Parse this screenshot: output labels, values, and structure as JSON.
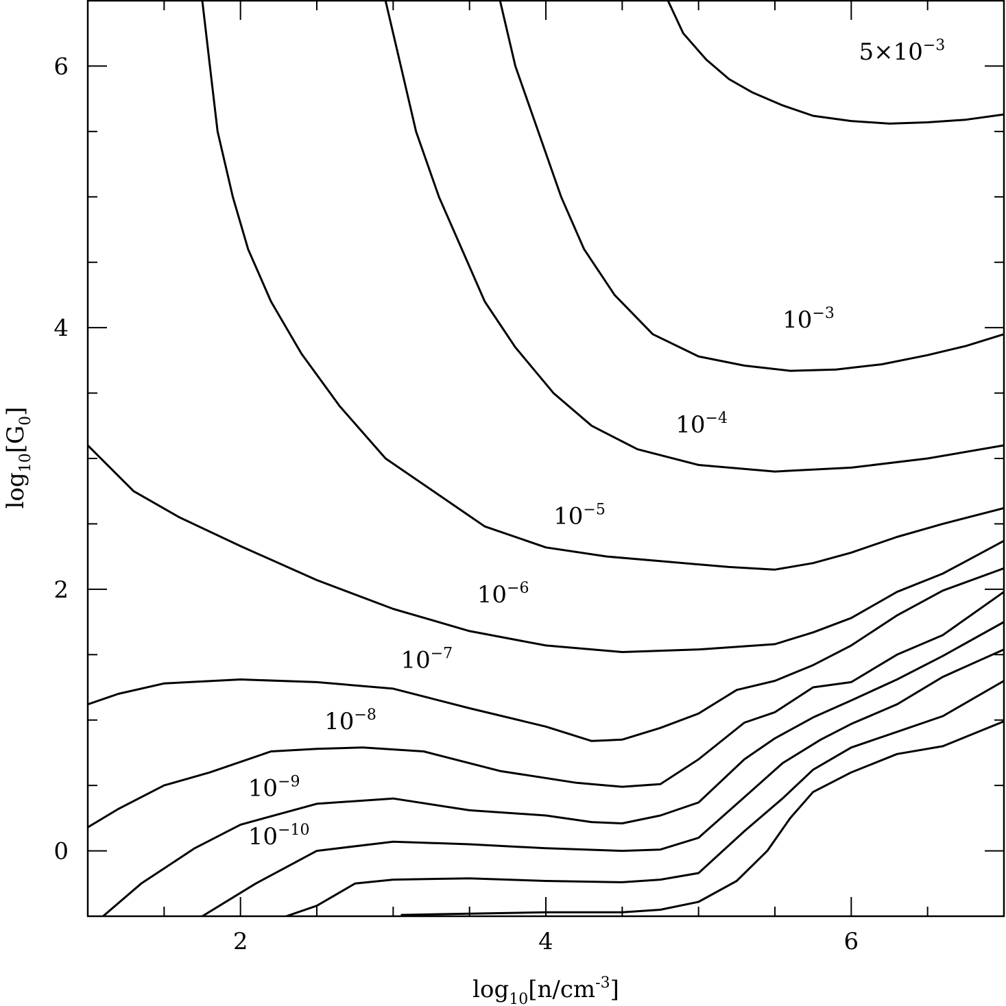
{
  "chart_data": {
    "type": "line",
    "subtype": "contour",
    "title": "",
    "xlabel": {
      "base": "log",
      "sub": "10",
      "text": "[n/cm",
      "sup": "-3",
      "close": "]"
    },
    "ylabel": {
      "base": "log",
      "sub": "10",
      "text": "[G",
      "sub2": "0",
      "close": "]"
    },
    "xlim": [
      1.0,
      7.0
    ],
    "ylim": [
      -0.5,
      6.5
    ],
    "xticks": [
      2,
      4,
      6
    ],
    "yticks": [
      0,
      2,
      4,
      6
    ],
    "xtick_labels": [
      "2",
      "4",
      "6"
    ],
    "ytick_labels": [
      "0",
      "2",
      "4",
      "6"
    ],
    "x_minor_step": 0.5,
    "y_minor_step": 0.5,
    "grid": false,
    "line_color": "#000000",
    "series": [
      {
        "name": "5e-3",
        "label": {
          "prefix": "5×10",
          "exp": "−3",
          "x": 6.05,
          "y": 6.05
        },
        "points": [
          [
            4.8,
            6.5
          ],
          [
            4.9,
            6.25
          ],
          [
            5.05,
            6.05
          ],
          [
            5.2,
            5.9
          ],
          [
            5.35,
            5.8
          ],
          [
            5.55,
            5.7
          ],
          [
            5.75,
            5.62
          ],
          [
            6.0,
            5.58
          ],
          [
            6.25,
            5.56
          ],
          [
            6.5,
            5.57
          ],
          [
            6.75,
            5.59
          ],
          [
            7.0,
            5.63
          ]
        ]
      },
      {
        "name": "1e-3",
        "label": {
          "prefix": "10",
          "exp": "−3",
          "x": 5.55,
          "y": 4.0
        },
        "points": [
          [
            3.7,
            6.5
          ],
          [
            3.8,
            6.0
          ],
          [
            3.95,
            5.5
          ],
          [
            4.1,
            5.0
          ],
          [
            4.25,
            4.6
          ],
          [
            4.45,
            4.25
          ],
          [
            4.7,
            3.95
          ],
          [
            5.0,
            3.78
          ],
          [
            5.3,
            3.71
          ],
          [
            5.6,
            3.67
          ],
          [
            5.9,
            3.68
          ],
          [
            6.2,
            3.72
          ],
          [
            6.5,
            3.79
          ],
          [
            6.75,
            3.86
          ],
          [
            7.0,
            3.95
          ]
        ]
      },
      {
        "name": "1e-4",
        "label": {
          "prefix": "10",
          "exp": "−4",
          "x": 4.85,
          "y": 3.2
        },
        "points": [
          [
            2.95,
            6.5
          ],
          [
            3.05,
            6.0
          ],
          [
            3.15,
            5.5
          ],
          [
            3.3,
            5.0
          ],
          [
            3.45,
            4.6
          ],
          [
            3.6,
            4.2
          ],
          [
            3.8,
            3.85
          ],
          [
            4.05,
            3.5
          ],
          [
            4.3,
            3.25
          ],
          [
            4.6,
            3.07
          ],
          [
            5.0,
            2.95
          ],
          [
            5.5,
            2.9
          ],
          [
            6.0,
            2.93
          ],
          [
            6.5,
            3.0
          ],
          [
            7.0,
            3.1
          ]
        ]
      },
      {
        "name": "1e-5",
        "label": {
          "prefix": "10",
          "exp": "−5",
          "x": 4.05,
          "y": 2.5
        },
        "points": [
          [
            1.75,
            6.5
          ],
          [
            1.8,
            6.0
          ],
          [
            1.85,
            5.5
          ],
          [
            1.95,
            5.0
          ],
          [
            2.05,
            4.6
          ],
          [
            2.2,
            4.2
          ],
          [
            2.4,
            3.8
          ],
          [
            2.65,
            3.4
          ],
          [
            2.95,
            3.0
          ],
          [
            3.3,
            2.72
          ],
          [
            3.6,
            2.48
          ],
          [
            4.0,
            2.32
          ],
          [
            4.4,
            2.25
          ],
          [
            4.8,
            2.21
          ],
          [
            5.2,
            2.17
          ],
          [
            5.5,
            2.15
          ],
          [
            5.75,
            2.2
          ],
          [
            6.0,
            2.28
          ],
          [
            6.3,
            2.4
          ],
          [
            6.6,
            2.5
          ],
          [
            7.0,
            2.62
          ]
        ]
      },
      {
        "name": "1e-6",
        "label": {
          "prefix": "10",
          "exp": "−6",
          "x": 3.55,
          "y": 1.9
        },
        "points": [
          [
            1.0,
            3.1
          ],
          [
            1.3,
            2.75
          ],
          [
            1.6,
            2.55
          ],
          [
            2.0,
            2.33
          ],
          [
            2.5,
            2.07
          ],
          [
            3.0,
            1.85
          ],
          [
            3.5,
            1.68
          ],
          [
            4.0,
            1.57
          ],
          [
            4.5,
            1.52
          ],
          [
            5.0,
            1.54
          ],
          [
            5.5,
            1.58
          ],
          [
            5.75,
            1.67
          ],
          [
            6.0,
            1.78
          ],
          [
            6.3,
            1.98
          ],
          [
            6.6,
            2.12
          ],
          [
            7.0,
            2.37
          ]
        ]
      },
      {
        "name": "1e-7",
        "label": {
          "prefix": "10",
          "exp": "−7",
          "x": 3.05,
          "y": 1.4
        },
        "points": [
          [
            1.0,
            1.12
          ],
          [
            1.2,
            1.2
          ],
          [
            1.5,
            1.28
          ],
          [
            2.0,
            1.31
          ],
          [
            2.5,
            1.29
          ],
          [
            3.0,
            1.24
          ],
          [
            3.5,
            1.09
          ],
          [
            4.0,
            0.95
          ],
          [
            4.3,
            0.84
          ],
          [
            4.5,
            0.85
          ],
          [
            4.75,
            0.94
          ],
          [
            5.0,
            1.05
          ],
          [
            5.25,
            1.23
          ],
          [
            5.5,
            1.3
          ],
          [
            5.75,
            1.42
          ],
          [
            6.0,
            1.57
          ],
          [
            6.3,
            1.8
          ],
          [
            6.6,
            1.99
          ],
          [
            7.0,
            2.16
          ]
        ]
      },
      {
        "name": "1e-8",
        "label": {
          "prefix": "10",
          "exp": "−8",
          "x": 2.55,
          "y": 0.93
        },
        "points": [
          [
            1.0,
            0.18
          ],
          [
            1.2,
            0.32
          ],
          [
            1.5,
            0.5
          ],
          [
            1.8,
            0.6
          ],
          [
            2.2,
            0.76
          ],
          [
            2.5,
            0.78
          ],
          [
            2.8,
            0.79
          ],
          [
            3.2,
            0.76
          ],
          [
            3.7,
            0.61
          ],
          [
            4.2,
            0.52
          ],
          [
            4.5,
            0.49
          ],
          [
            4.75,
            0.51
          ],
          [
            5.0,
            0.7
          ],
          [
            5.3,
            0.98
          ],
          [
            5.5,
            1.06
          ],
          [
            5.75,
            1.25
          ],
          [
            6.0,
            1.29
          ],
          [
            6.3,
            1.5
          ],
          [
            6.6,
            1.65
          ],
          [
            7.0,
            1.98
          ]
        ]
      },
      {
        "name": "1e-9",
        "label": {
          "prefix": "10",
          "exp": "−9",
          "x": 2.05,
          "y": 0.42
        },
        "points": [
          [
            1.1,
            -0.5
          ],
          [
            1.35,
            -0.25
          ],
          [
            1.7,
            0.02
          ],
          [
            2.0,
            0.2
          ],
          [
            2.5,
            0.36
          ],
          [
            3.0,
            0.4
          ],
          [
            3.5,
            0.31
          ],
          [
            4.0,
            0.27
          ],
          [
            4.3,
            0.22
          ],
          [
            4.5,
            0.21
          ],
          [
            4.75,
            0.27
          ],
          [
            5.0,
            0.37
          ],
          [
            5.3,
            0.7
          ],
          [
            5.5,
            0.86
          ],
          [
            5.75,
            1.02
          ],
          [
            6.0,
            1.15
          ],
          [
            6.3,
            1.31
          ],
          [
            6.6,
            1.49
          ],
          [
            7.0,
            1.75
          ]
        ]
      },
      {
        "name": "1e-10",
        "label": {
          "prefix": "10",
          "exp": "−10",
          "x": 2.05,
          "y": 0.05
        },
        "points": [
          [
            1.75,
            -0.5
          ],
          [
            2.1,
            -0.25
          ],
          [
            2.5,
            0.0
          ],
          [
            3.0,
            0.07
          ],
          [
            3.5,
            0.05
          ],
          [
            4.0,
            0.02
          ],
          [
            4.5,
            0.0
          ],
          [
            4.75,
            0.01
          ],
          [
            5.0,
            0.1
          ],
          [
            5.3,
            0.41
          ],
          [
            5.55,
            0.67
          ],
          [
            5.8,
            0.85
          ],
          [
            6.0,
            0.97
          ],
          [
            6.3,
            1.12
          ],
          [
            6.6,
            1.33
          ],
          [
            7.0,
            1.54
          ]
        ]
      },
      {
        "name": "1e-11",
        "label": null,
        "points": [
          [
            2.3,
            -0.5
          ],
          [
            2.5,
            -0.42
          ],
          [
            2.75,
            -0.25
          ],
          [
            3.0,
            -0.22
          ],
          [
            3.5,
            -0.21
          ],
          [
            4.0,
            -0.23
          ],
          [
            4.5,
            -0.24
          ],
          [
            4.75,
            -0.22
          ],
          [
            5.0,
            -0.17
          ],
          [
            5.3,
            0.15
          ],
          [
            5.55,
            0.4
          ],
          [
            5.75,
            0.62
          ],
          [
            6.0,
            0.79
          ],
          [
            6.3,
            0.91
          ],
          [
            6.6,
            1.03
          ],
          [
            7.0,
            1.3
          ]
        ]
      },
      {
        "name": "1e-12",
        "label": null,
        "points": [
          [
            3.05,
            -0.49
          ],
          [
            3.5,
            -0.48
          ],
          [
            4.0,
            -0.47
          ],
          [
            4.5,
            -0.47
          ],
          [
            4.75,
            -0.45
          ],
          [
            5.0,
            -0.39
          ],
          [
            5.25,
            -0.23
          ],
          [
            5.45,
            0.0
          ],
          [
            5.6,
            0.25
          ],
          [
            5.75,
            0.45
          ],
          [
            6.0,
            0.6
          ],
          [
            6.3,
            0.74
          ],
          [
            6.6,
            0.8
          ],
          [
            7.0,
            0.99
          ]
        ]
      }
    ]
  }
}
